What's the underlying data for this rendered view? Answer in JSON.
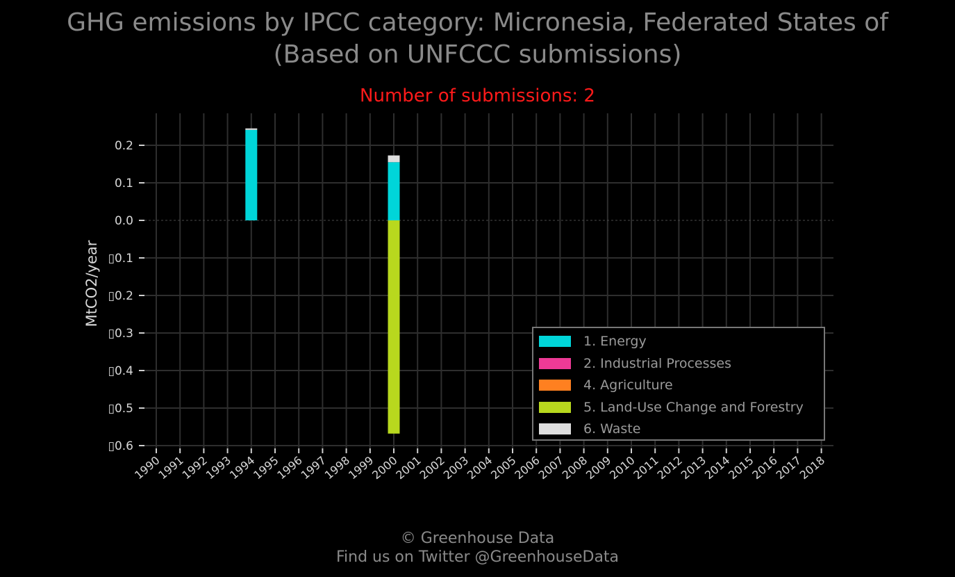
{
  "title": {
    "line1": "GHG emissions by IPCC category: Micronesia, Federated States of",
    "line2": "(Based on UNFCCC submissions)"
  },
  "subtitle": "Number of submissions: 2",
  "footer": {
    "line1": "© Greenhouse Data",
    "line2": "Find us on Twitter @GreenhouseData"
  },
  "colors": {
    "background": "#000000",
    "grid": "#2e2e2e",
    "text": "#8a8a8a",
    "subtitle": "#ff1a1a"
  },
  "chart_data": {
    "type": "bar",
    "stacked": true,
    "title": "GHG emissions by IPCC category: Micronesia, Federated States of (Based on UNFCCC submissions)",
    "subtitle": "Number of submissions: 2",
    "xlabel": "",
    "ylabel": "MtCO2/year",
    "ylim": [
      -0.6,
      0.28
    ],
    "yticks": [
      0.2,
      0.1,
      0.0,
      -0.1,
      -0.2,
      -0.3,
      -0.4,
      -0.5,
      -0.6
    ],
    "ytick_labels": [
      "0.2",
      "0.1",
      "0.0",
      "▯0.1",
      "▯0.2",
      "▯0.3",
      "▯0.4",
      "▯0.5",
      "▯0.6"
    ],
    "grid": true,
    "legend_position": "bottom-right",
    "categories": [
      "1990",
      "1991",
      "1992",
      "1993",
      "1994",
      "1995",
      "1996",
      "1997",
      "1998",
      "1999",
      "2000",
      "2001",
      "2002",
      "2003",
      "2004",
      "2005",
      "2006",
      "2007",
      "2008",
      "2009",
      "2010",
      "2011",
      "2012",
      "2013",
      "2014",
      "2015",
      "2016",
      "2017",
      "2018"
    ],
    "series": [
      {
        "name": "1. Energy",
        "color": "#00d5d9",
        "values": [
          0,
          0,
          0,
          0,
          0.241,
          0,
          0,
          0,
          0,
          0,
          0.155,
          0,
          0,
          0,
          0,
          0,
          0,
          0,
          0,
          0,
          0,
          0,
          0,
          0,
          0,
          0,
          0,
          0,
          0
        ]
      },
      {
        "name": "2. Industrial Processes",
        "color": "#ee3a96",
        "values": [
          0,
          0,
          0,
          0,
          0,
          0,
          0,
          0,
          0,
          0,
          0,
          0,
          0,
          0,
          0,
          0,
          0,
          0,
          0,
          0,
          0,
          0,
          0,
          0,
          0,
          0,
          0,
          0,
          0
        ]
      },
      {
        "name": "4. Agriculture",
        "color": "#ff8020",
        "values": [
          0,
          0,
          0,
          0,
          0,
          0,
          0,
          0,
          0,
          0,
          0,
          0,
          0,
          0,
          0,
          0,
          0,
          0,
          0,
          0,
          0,
          0,
          0,
          0,
          0,
          0,
          0,
          0,
          0
        ]
      },
      {
        "name": "5. Land-Use Change and Forestry",
        "color": "#b8d81e",
        "values": [
          0,
          0,
          0,
          0,
          0,
          0,
          0,
          0,
          0,
          0,
          -0.568,
          0,
          0,
          0,
          0,
          0,
          0,
          0,
          0,
          0,
          0,
          0,
          0,
          0,
          0,
          0,
          0,
          0,
          0
        ]
      },
      {
        "name": "6. Waste",
        "color": "#dedede",
        "values": [
          0,
          0,
          0,
          0,
          0.004,
          0,
          0,
          0,
          0,
          0,
          0.018,
          0,
          0,
          0,
          0,
          0,
          0,
          0,
          0,
          0,
          0,
          0,
          0,
          0,
          0,
          0,
          0,
          0,
          0
        ]
      }
    ]
  }
}
